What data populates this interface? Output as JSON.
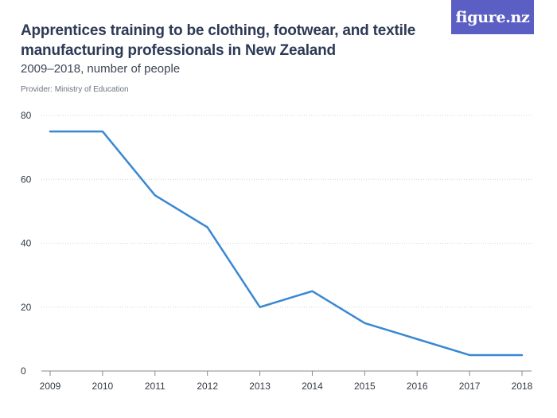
{
  "header": {
    "title": "Apprentices training to be clothing, footwear, and textile manufacturing professionals in New Zealand",
    "subtitle": "2009–2018, number of people",
    "provider": "Provider: Ministry of Education",
    "logo": "figure.nz"
  },
  "colors": {
    "line": "#3a88d2",
    "grid": "#d4d4d4",
    "axis": "#888888",
    "logo_bg": "#5b5fc4"
  },
  "chart_data": {
    "type": "line",
    "title": "Apprentices training to be clothing, footwear, and textile manufacturing professionals in New Zealand",
    "subtitle": "2009–2018, number of people",
    "xlabel": "",
    "ylabel": "",
    "categories": [
      "2009",
      "2010",
      "2011",
      "2012",
      "2013",
      "2014",
      "2015",
      "2016",
      "2017",
      "2018"
    ],
    "series": [
      {
        "values": [
          75,
          75,
          55,
          45,
          20,
          25,
          15,
          10,
          5,
          5
        ]
      }
    ],
    "ylim": [
      0,
      80
    ],
    "yticks": [
      0,
      20,
      40,
      60,
      80
    ],
    "grid": true,
    "legend": "none"
  }
}
